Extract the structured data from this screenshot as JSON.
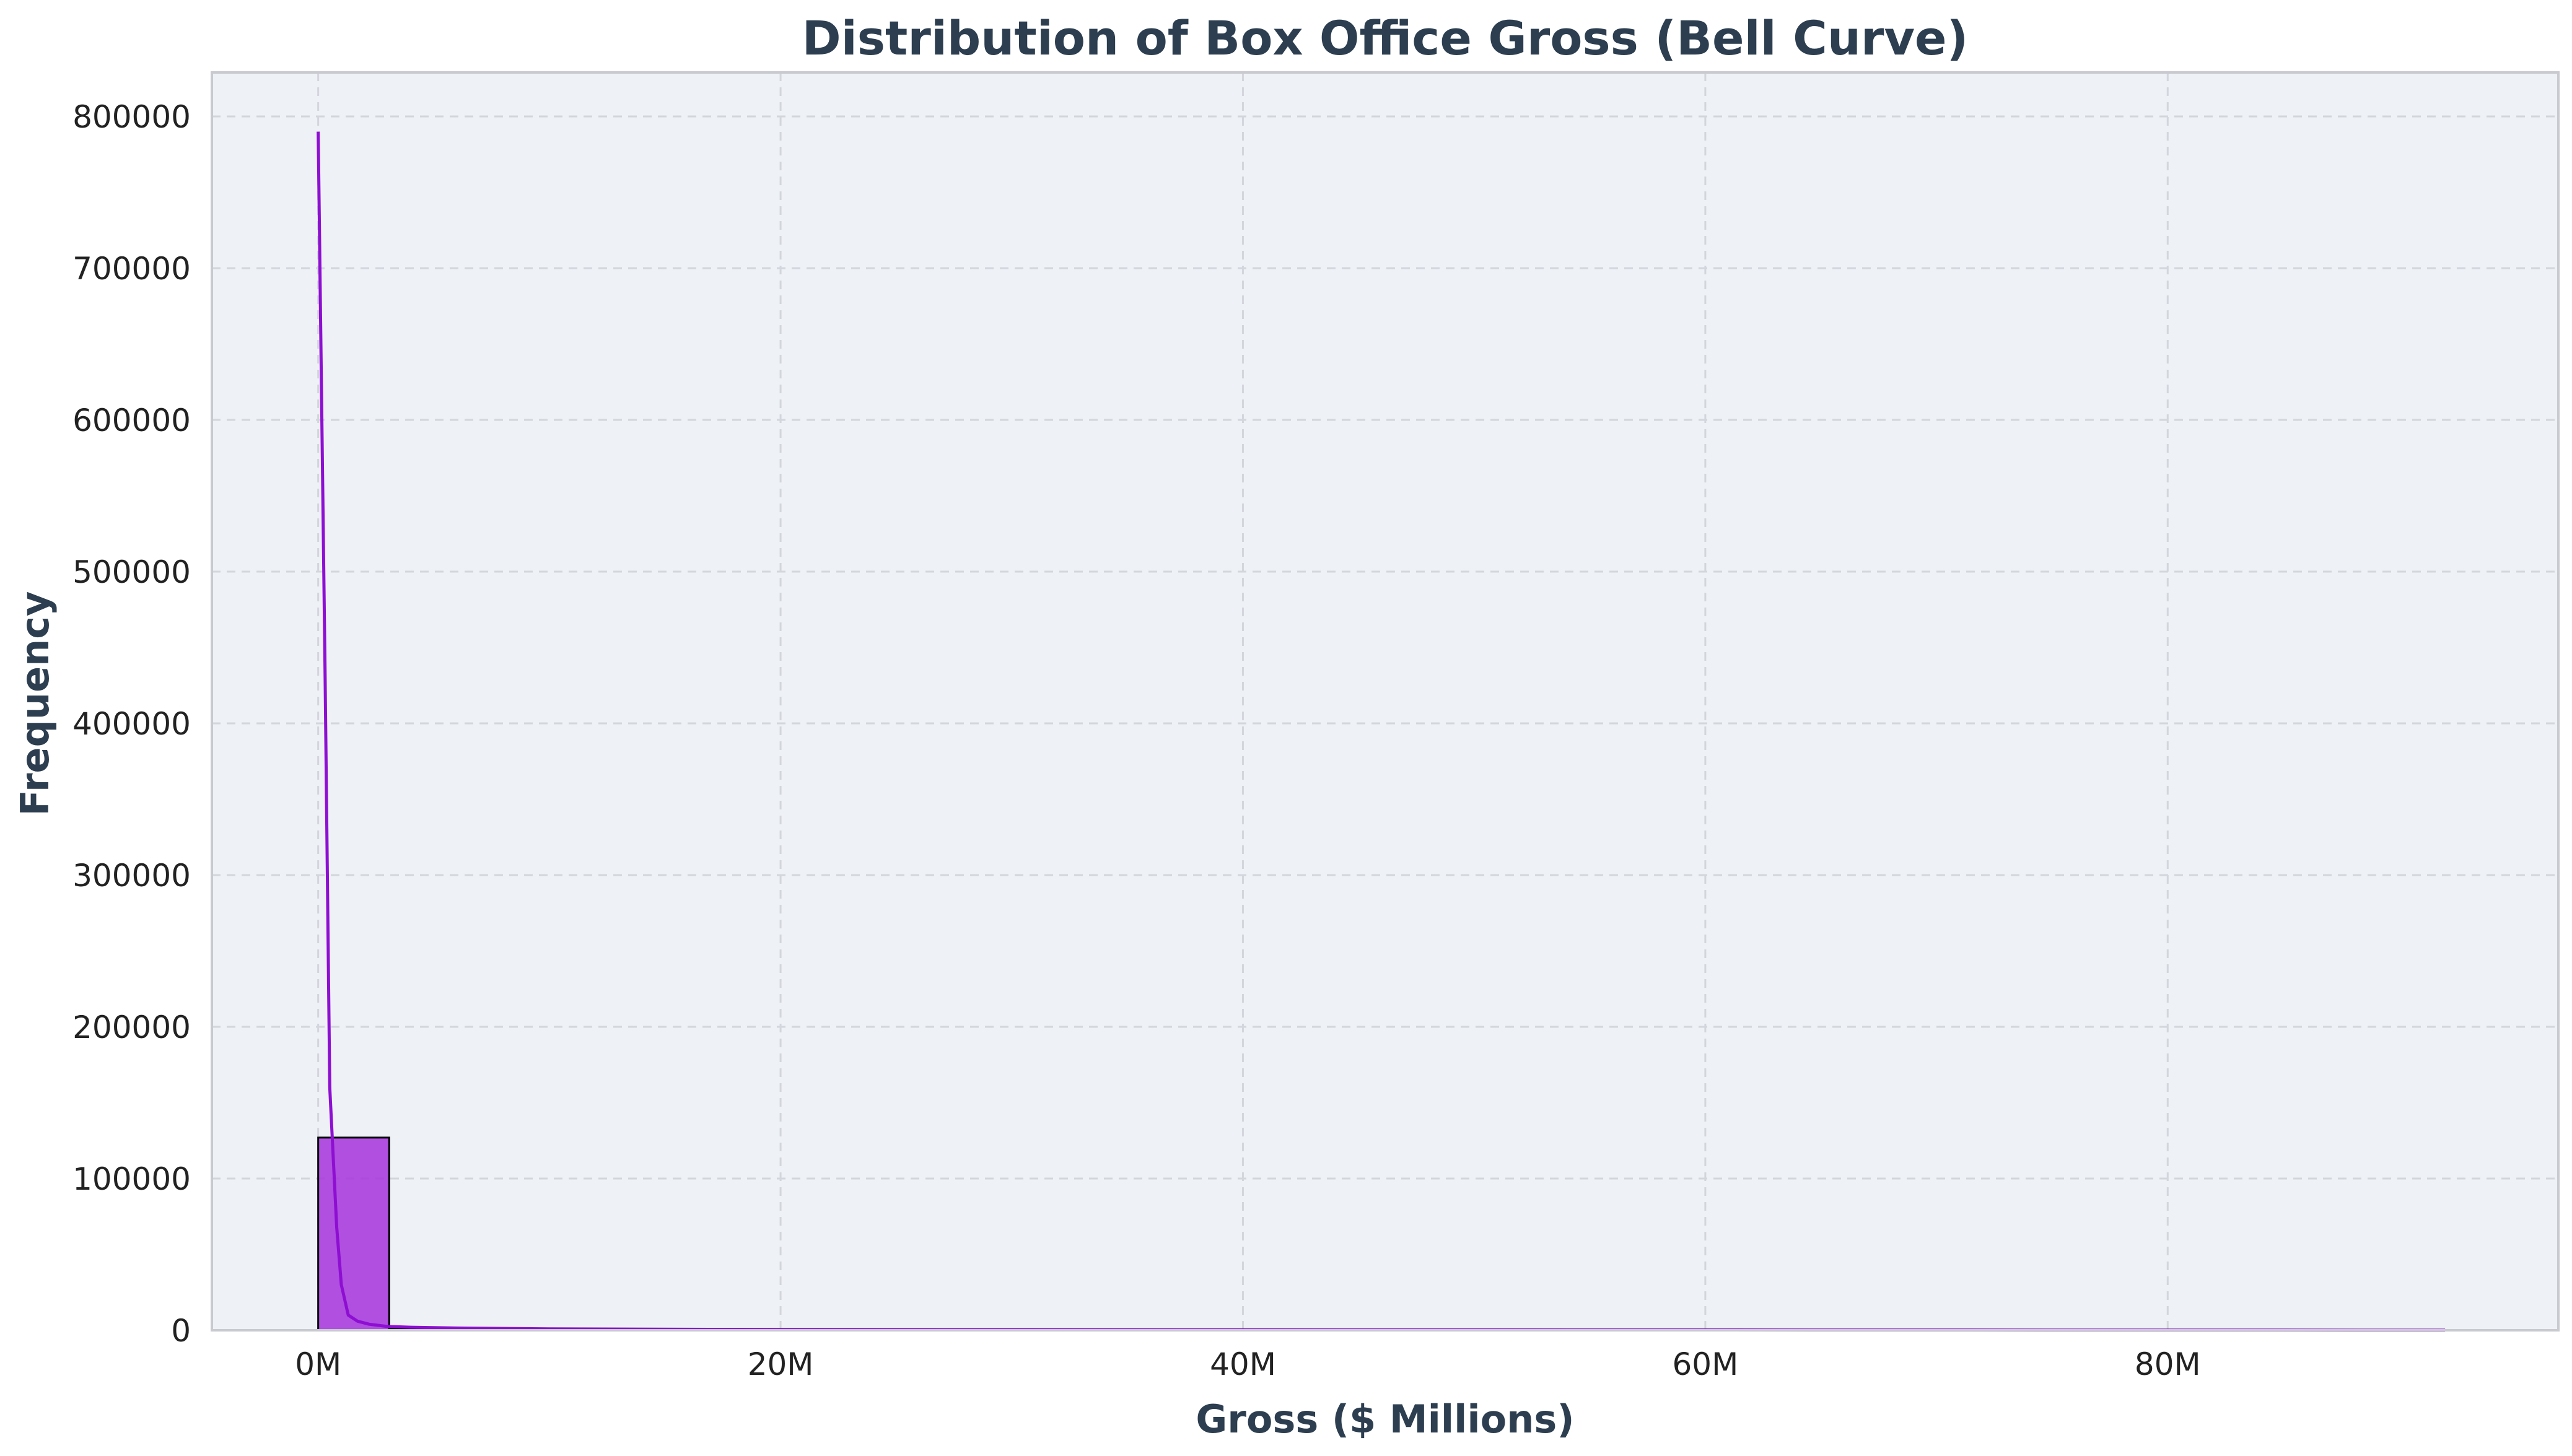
{
  "chart_data": {
    "type": "bar",
    "title": "Distribution of Box Office Gross (Bell Curve)",
    "xlabel": "Gross ($ Millions)",
    "ylabel": "Frequency",
    "xlim": [
      -4.6,
      96.9
    ],
    "ylim": [
      0,
      829000
    ],
    "x_ticks": [
      {
        "value": 0,
        "label": "0M"
      },
      {
        "value": 20,
        "label": "20M"
      },
      {
        "value": 40,
        "label": "40M"
      },
      {
        "value": 60,
        "label": "60M"
      },
      {
        "value": 80,
        "label": "80M"
      }
    ],
    "y_ticks": [
      {
        "value": 0,
        "label": "0"
      },
      {
        "value": 100000,
        "label": "100000"
      },
      {
        "value": 200000,
        "label": "200000"
      },
      {
        "value": 300000,
        "label": "300000"
      },
      {
        "value": 400000,
        "label": "400000"
      },
      {
        "value": 500000,
        "label": "500000"
      },
      {
        "value": 600000,
        "label": "600000"
      },
      {
        "value": 700000,
        "label": "700000"
      },
      {
        "value": 800000,
        "label": "800000"
      }
    ],
    "grid": true,
    "bins": [
      {
        "x0": 0.0,
        "x1": 3.07,
        "count": 127000
      },
      {
        "x0": 3.07,
        "x1": 6.14,
        "count": 1200
      },
      {
        "x0": 6.14,
        "x1": 9.21,
        "count": 400
      },
      {
        "x0": 9.21,
        "x1": 12.28,
        "count": 200
      },
      {
        "x0": 12.28,
        "x1": 15.35,
        "count": 120
      },
      {
        "x0": 15.35,
        "x1": 18.42,
        "count": 80
      },
      {
        "x0": 18.42,
        "x1": 21.49,
        "count": 60
      },
      {
        "x0": 21.49,
        "x1": 24.56,
        "count": 40
      },
      {
        "x0": 24.56,
        "x1": 27.63,
        "count": 30
      },
      {
        "x0": 27.63,
        "x1": 30.7,
        "count": 20
      },
      {
        "x0": 30.7,
        "x1": 33.77,
        "count": 15
      },
      {
        "x0": 33.77,
        "x1": 36.84,
        "count": 10
      },
      {
        "x0": 36.84,
        "x1": 39.91,
        "count": 8
      },
      {
        "x0": 39.91,
        "x1": 42.98,
        "count": 6
      },
      {
        "x0": 42.98,
        "x1": 46.05,
        "count": 5
      },
      {
        "x0": 46.05,
        "x1": 49.12,
        "count": 4
      },
      {
        "x0": 49.12,
        "x1": 52.19,
        "count": 3
      },
      {
        "x0": 52.19,
        "x1": 55.26,
        "count": 3
      },
      {
        "x0": 55.26,
        "x1": 58.33,
        "count": 2
      },
      {
        "x0": 58.33,
        "x1": 61.4,
        "count": 2
      },
      {
        "x0": 61.4,
        "x1": 64.47,
        "count": 2
      },
      {
        "x0": 64.47,
        "x1": 67.54,
        "count": 1
      },
      {
        "x0": 67.54,
        "x1": 70.61,
        "count": 1
      },
      {
        "x0": 70.61,
        "x1": 73.68,
        "count": 1
      },
      {
        "x0": 73.68,
        "x1": 76.75,
        "count": 1
      },
      {
        "x0": 76.75,
        "x1": 79.82,
        "count": 1
      },
      {
        "x0": 79.82,
        "x1": 82.89,
        "count": 1
      },
      {
        "x0": 82.89,
        "x1": 85.96,
        "count": 1
      },
      {
        "x0": 85.96,
        "x1": 89.03,
        "count": 1
      },
      {
        "x0": 89.03,
        "x1": 92.1,
        "count": 1
      }
    ],
    "kde_curve": {
      "x": [
        0.0,
        0.3,
        0.5,
        0.8,
        1.0,
        1.3,
        1.7,
        2.2,
        3.0,
        4.0,
        6.0,
        10.0,
        20.0,
        40.0,
        60.0,
        80.0,
        92.0
      ],
      "y": [
        790000,
        430000,
        160000,
        68000,
        30000,
        10000,
        6000,
        4000,
        2500,
        2000,
        1500,
        900,
        500,
        300,
        200,
        100,
        50
      ]
    },
    "colors": {
      "bar_fill": "#a432dc",
      "bar_edge": "#000000",
      "kde_line": "#8e0fd2",
      "plot_background": "#eef1f6",
      "frame": "#c8cad0"
    }
  }
}
